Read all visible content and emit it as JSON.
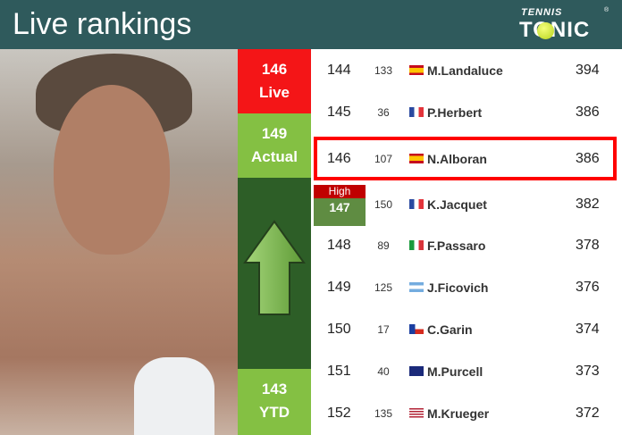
{
  "header": {
    "title": "Live rankings",
    "logo_top": "TENNIS",
    "logo_bottom": "TONIC",
    "colors": {
      "header_bg": "#2f5a5c"
    }
  },
  "side": {
    "live_rank": "146",
    "live_label": "Live",
    "actual_rank": "149",
    "actual_label": "Actual",
    "ytd_rank": "143",
    "ytd_label": "YTD",
    "high_label": "High",
    "high_rank": "147",
    "trend": "up-arrow-icon"
  },
  "rows": [
    {
      "rank": "144",
      "prev": "133",
      "flag": "spain",
      "name": "M.Landaluce",
      "points": "394"
    },
    {
      "rank": "145",
      "prev": "36",
      "flag": "france",
      "name": "P.Herbert",
      "points": "386"
    },
    {
      "rank": "146",
      "prev": "107",
      "flag": "spain",
      "name": "N.Alboran",
      "points": "386",
      "highlighted": true
    },
    {
      "rank": "147",
      "prev": "150",
      "flag": "france",
      "name": "K.Jacquet",
      "points": "382"
    },
    {
      "rank": "148",
      "prev": "89",
      "flag": "italy",
      "name": "F.Passaro",
      "points": "378"
    },
    {
      "rank": "149",
      "prev": "125",
      "flag": "argentina",
      "name": "J.Ficovich",
      "points": "376"
    },
    {
      "rank": "150",
      "prev": "17",
      "flag": "chile",
      "name": "C.Garin",
      "points": "374"
    },
    {
      "rank": "151",
      "prev": "40",
      "flag": "australia",
      "name": "M.Purcell",
      "points": "373"
    },
    {
      "rank": "152",
      "prev": "135",
      "flag": "usa",
      "name": "M.Krueger",
      "points": "372"
    }
  ]
}
